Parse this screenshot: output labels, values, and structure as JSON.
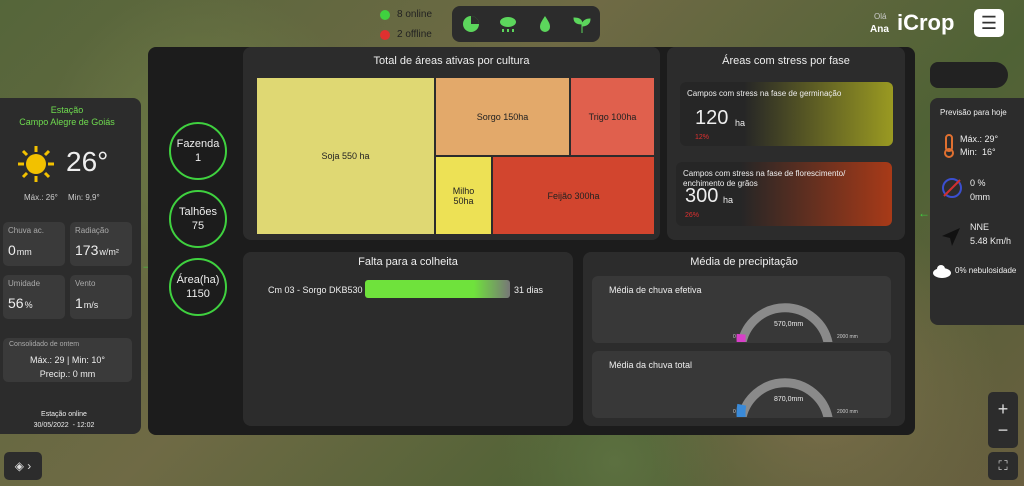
{
  "status": {
    "online": "8 online",
    "offline": "2 offline"
  },
  "header": {
    "greeting": "Olá",
    "user": "Ana",
    "logo": "iCrop"
  },
  "station": {
    "label": "Estação",
    "name": "Campo Alegre de Goiás",
    "temperature": "26°",
    "max": "Máx.: 26°",
    "min": "Min: 9,9°",
    "tiles": [
      {
        "label": "Chuva ac.",
        "value": "0",
        "unit": "mm"
      },
      {
        "label": "Radiação",
        "value": "173",
        "unit": "w/m²"
      },
      {
        "label": "Umidade",
        "value": "56",
        "unit": "%"
      },
      {
        "label": "Vento",
        "value": "1",
        "unit": "m/s"
      }
    ],
    "yesterday": {
      "title": "Consolidado de ontem",
      "temps": "Máx.: 29 | Min: 10°",
      "precip": "Precip.: 0 mm"
    },
    "footer": {
      "status": "Estação online",
      "datetime": "30/05/2022  - 12:02"
    }
  },
  "summary": [
    {
      "label": "Fazenda",
      "value": "1"
    },
    {
      "label": "Talhões",
      "value": "75"
    },
    {
      "label": "Área(ha)",
      "value": "1150"
    }
  ],
  "treemap": {
    "title": "Total de áreas ativas por cultura",
    "cells": [
      "Soja 550 ha",
      "Sorgo 150ha",
      "Trigo 100ha",
      "Milho 50ha",
      "Feijão 300ha"
    ]
  },
  "stress": {
    "title": "Áreas com stress por fase",
    "cards": [
      {
        "label": "Campos com stress na fase de germinação",
        "value": "120",
        "unit": "ha",
        "percent": "12%"
      },
      {
        "label": "Campos com stress na fase de florescimento/ enchimento de grãos",
        "value": "300",
        "unit": "ha",
        "percent": "26%"
      }
    ]
  },
  "harvest": {
    "title": "Falta para a colheita",
    "rows": [
      {
        "field": "Cm 03 - Sorgo DKB530",
        "days": "31 dias"
      }
    ]
  },
  "precipitation": {
    "title": "Média de precipitação",
    "gauges": [
      {
        "label": "Média de chuva efetiva",
        "value": "570,0mm",
        "min": "0",
        "max": "2000 mm"
      },
      {
        "label": "Média da chuva total",
        "value": "870,0mm",
        "min": "0",
        "max": "2000 mm"
      }
    ]
  },
  "forecast": {
    "title": "Previsão para hoje",
    "max": "Máx.: 29°",
    "min": "Min:  16°",
    "rain_prob": "0 %",
    "rain": "0mm",
    "wind_dir": "NNE",
    "wind_speed": "5.48 Km/h",
    "clouds": "0% nebulosidade"
  }
}
